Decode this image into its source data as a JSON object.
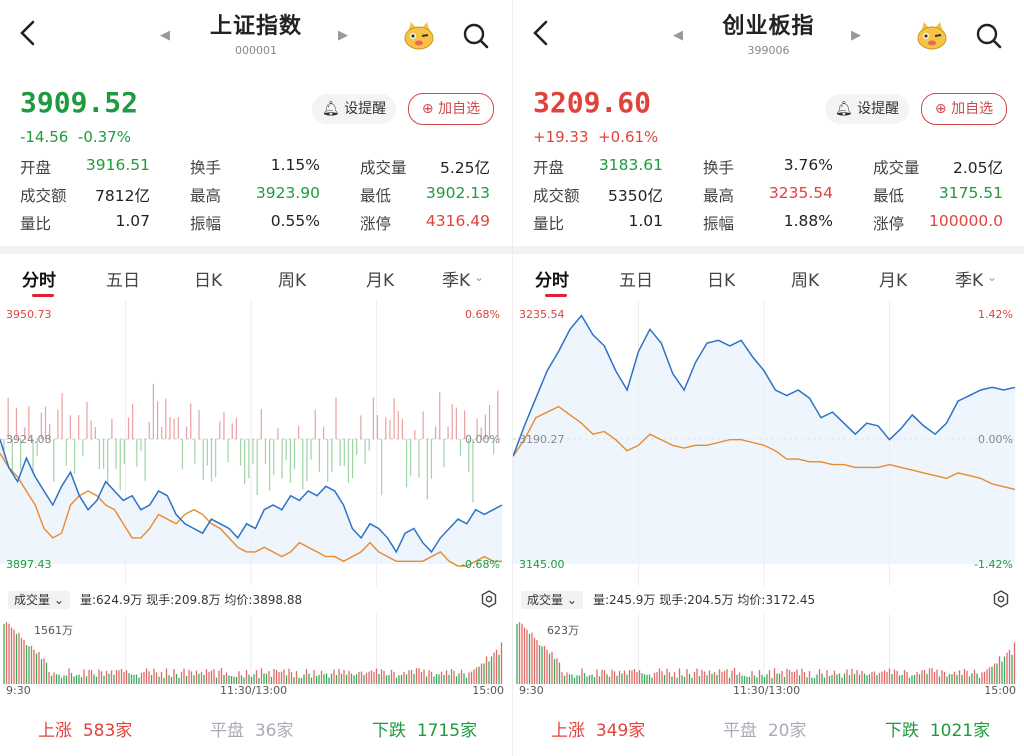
{
  "colors": {
    "up": "#e0433c",
    "down": "#1f9a3e",
    "price_line": "#2c72c7",
    "avg_line": "#e88b2e"
  },
  "panels": [
    {
      "title": "上证指数",
      "code": "000001",
      "price": "3909.52",
      "change": "-14.56",
      "change_pct": "-0.37%",
      "trend": "down",
      "alert_label": "设提醒",
      "fav_label": "加自选",
      "stats": [
        [
          {
            "l": "开盘",
            "v": "3916.51",
            "c": "down"
          },
          {
            "l": "换手",
            "v": "1.15%",
            "c": "n"
          },
          {
            "l": "成交量",
            "v": "5.25亿",
            "c": "n"
          }
        ],
        [
          {
            "l": "成交额",
            "v": "7812亿",
            "c": "n"
          },
          {
            "l": "最高",
            "v": "3923.90",
            "c": "down"
          },
          {
            "l": "最低",
            "v": "3902.13",
            "c": "down"
          }
        ],
        [
          {
            "l": "量比",
            "v": "1.07",
            "c": "n"
          },
          {
            "l": "振幅",
            "v": "0.55%",
            "c": "n"
          },
          {
            "l": "涨停",
            "v": "4316.49",
            "c": "up"
          }
        ]
      ],
      "tabs": [
        "分时",
        "五日",
        "日K",
        "周K",
        "月K",
        "季K"
      ],
      "y_top": "3950.73",
      "y_mid": "3924.08",
      "y_bot": "3897.43",
      "pct_top": "0.68%",
      "pct_mid": "0.00%",
      "pct_bot": "-0.68%",
      "vol_label": "成交量",
      "vol_info": "量:624.9万  现手:209.8万  均价:3898.88",
      "vol_max": "1561万",
      "times": [
        "9:30",
        "11:30/13:00",
        "15:00"
      ],
      "rise_label": "上涨",
      "rise": "583家",
      "flat_label": "平盘",
      "flat": "36家",
      "fall_label": "下跌",
      "fall": "1715家",
      "price_series": [
        3924,
        3918,
        3915,
        3920,
        3916,
        3913,
        3910,
        3914,
        3917,
        3912,
        3909,
        3911,
        3915,
        3913,
        3911,
        3912,
        3909,
        3910,
        3913,
        3912,
        3908,
        3906,
        3905,
        3904,
        3907,
        3906,
        3905,
        3903,
        3906,
        3905,
        3909,
        3910,
        3909,
        3912,
        3911,
        3913,
        3912,
        3914,
        3913,
        3910,
        3905,
        3903,
        3906,
        3905,
        3903,
        3900,
        3904,
        3905,
        3902,
        3900,
        3903,
        3905,
        3907,
        3906,
        3909,
        3908,
        3909,
        3910
      ],
      "avg_series": [
        3921,
        3918,
        3916,
        3913,
        3910,
        3905,
        3903,
        3904,
        3910,
        3912,
        3913,
        3912,
        3910,
        3909,
        3906,
        3903,
        3903,
        3905,
        3908,
        3907,
        3906,
        3908,
        3909,
        3908,
        3906,
        3905,
        3903,
        3901,
        3900,
        3900,
        3901,
        3900,
        3899,
        3900,
        3902,
        3901,
        3900,
        3899,
        3899,
        3898,
        3899,
        3900,
        3902,
        3900,
        3899,
        3898,
        3898,
        3898,
        3898,
        3899,
        3900,
        3898,
        3897,
        3897,
        3898,
        3899,
        3898,
        3898
      ]
    },
    {
      "title": "创业板指",
      "code": "399006",
      "price": "3209.60",
      "change": "+19.33",
      "change_pct": "+0.61%",
      "trend": "up",
      "alert_label": "设提醒",
      "fav_label": "加自选",
      "stats": [
        [
          {
            "l": "开盘",
            "v": "3183.61",
            "c": "down"
          },
          {
            "l": "换手",
            "v": "3.76%",
            "c": "n"
          },
          {
            "l": "成交量",
            "v": "2.05亿",
            "c": "n"
          }
        ],
        [
          {
            "l": "成交额",
            "v": "5350亿",
            "c": "n"
          },
          {
            "l": "最高",
            "v": "3235.54",
            "c": "up"
          },
          {
            "l": "最低",
            "v": "3175.51",
            "c": "down"
          }
        ],
        [
          {
            "l": "量比",
            "v": "1.01",
            "c": "n"
          },
          {
            "l": "振幅",
            "v": "1.88%",
            "c": "n"
          },
          {
            "l": "涨停",
            "v": "100000.0",
            "c": "up"
          }
        ]
      ],
      "tabs": [
        "分时",
        "五日",
        "日K",
        "周K",
        "月K",
        "季K"
      ],
      "y_top": "3235.54",
      "y_mid": "3190.27",
      "y_bot": "3145.00",
      "pct_top": "1.42%",
      "pct_mid": "0.00%",
      "pct_bot": "-1.42%",
      "vol_label": "成交量",
      "vol_info": "量:245.9万  现手:204.5万  均价:3172.45",
      "vol_max": "623万",
      "times": [
        "9:30",
        "11:30/13:00",
        "15:00"
      ],
      "rise_label": "上涨",
      "rise": "349家",
      "flat_label": "平盘",
      "flat": "20家",
      "fall_label": "下跌",
      "fall": "1021家",
      "price_series": [
        3184,
        3195,
        3205,
        3215,
        3222,
        3230,
        3235,
        3228,
        3224,
        3215,
        3208,
        3222,
        3230,
        3225,
        3214,
        3208,
        3218,
        3225,
        3226,
        3224,
        3226,
        3220,
        3215,
        3208,
        3206,
        3208,
        3205,
        3198,
        3200,
        3196,
        3192,
        3196,
        3195,
        3190,
        3194,
        3199,
        3195,
        3192,
        3196,
        3204,
        3206,
        3208,
        3209,
        3208,
        3209
      ],
      "avg_series": [
        3184,
        3190,
        3198,
        3200,
        3202,
        3199,
        3196,
        3192,
        3193,
        3190,
        3186,
        3188,
        3192,
        3190,
        3188,
        3187,
        3188,
        3188,
        3189,
        3190,
        3190,
        3189,
        3188,
        3186,
        3183,
        3183,
        3182,
        3182,
        3181,
        3181,
        3180,
        3180,
        3180,
        3181,
        3180,
        3179,
        3178,
        3177,
        3176,
        3178,
        3177,
        3176,
        3174,
        3173,
        3172
      ]
    }
  ]
}
